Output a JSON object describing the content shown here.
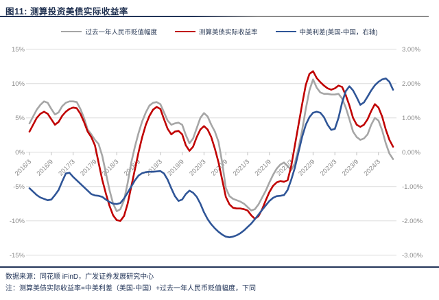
{
  "title": "图11: 测算投资美债实际收益率",
  "legend": [
    {
      "label": "过去一年人民币贬值幅度",
      "color": "#A6A6A6"
    },
    {
      "label": "测算美债实际收益率",
      "color": "#C00000"
    },
    {
      "label": "中美利差(美国-中国，右轴)",
      "color": "#2F5597"
    }
  ],
  "footer": {
    "source": "数据来源：同花顺 iFinD，广发证券发展研究中心",
    "note": "注：测算美债实际收益率=中美利差（美国-中国）+过去一年人民币贬值幅度，下同"
  },
  "chart_data": {
    "type": "line",
    "x_start": "2016/3",
    "x_frequency": "monthly",
    "x_tick_labels": [
      "2016/3",
      "2016/9",
      "2017/3",
      "2017/9",
      "2018/3",
      "2018/9",
      "2019/3",
      "2019/9",
      "2020/3",
      "2020/9",
      "2021/3",
      "2021/9",
      "2022/3",
      "2022/9",
      "2023/3",
      "2023/9",
      "2024/3"
    ],
    "left_axis": {
      "labels": [
        "15%",
        "10%",
        "5%",
        "0%",
        "-5%",
        "-10%",
        "-15%"
      ],
      "values": [
        15,
        10,
        5,
        0,
        -5,
        -10,
        -15
      ],
      "min": -15,
      "max": 15
    },
    "right_axis": {
      "labels": [
        "3.00%",
        "2.00%",
        "1.00%",
        "0.00%",
        "-1.00%",
        "-2.00%",
        "-3.00%"
      ],
      "values": [
        3,
        2,
        1,
        0,
        -1,
        -2,
        -3
      ],
      "min": -3,
      "max": 3
    },
    "grid": "horizontal",
    "legend_position": "top",
    "series": [
      {
        "name": "过去一年人民币贬值幅度",
        "axis": "left",
        "color": "#A6A6A6",
        "values": [
          4.2,
          5.2,
          6.2,
          6.9,
          7.4,
          7.2,
          6.3,
          5.5,
          5.8,
          6.7,
          7.2,
          7.4,
          7.4,
          7.3,
          6.3,
          5.0,
          3.3,
          2.6,
          1.8,
          1.2,
          -0.5,
          -3.0,
          -5.5,
          -7.5,
          -8.6,
          -8.3,
          -7.0,
          -4.5,
          -1.5,
          0.8,
          2.8,
          4.5,
          5.8,
          6.8,
          7.2,
          7.3,
          7.0,
          5.8,
          4.6,
          4.0,
          4.2,
          4.3,
          4.0,
          2.5,
          1.3,
          2.0,
          3.5,
          5.0,
          5.7,
          5.2,
          4.0,
          3.0,
          1.5,
          -1.5,
          -5.2,
          -6.4,
          -6.8,
          -7.0,
          -7.2,
          -7.5,
          -8.0,
          -8.5,
          -8.3,
          -7.6,
          -6.6,
          -5.6,
          -4.4,
          -3.3,
          -2.4,
          -1.8,
          -1.5,
          -2.0,
          -2.6,
          -1.6,
          0.6,
          3.2,
          6.3,
          9.0,
          10.6,
          9.4,
          8.7,
          8.5,
          8.5,
          8.4,
          8.4,
          8.5,
          7.8,
          6.5,
          4.8,
          3.0,
          2.2,
          1.8,
          2.0,
          2.6,
          4.0,
          5.0,
          4.6,
          3.2,
          1.3,
          -0.2,
          -1.0
        ]
      },
      {
        "name": "测算美债实际收益率",
        "axis": "left",
        "color": "#C00000",
        "values": [
          3.0,
          4.0,
          5.0,
          5.6,
          5.9,
          5.6,
          4.8,
          4.0,
          4.4,
          5.3,
          5.9,
          6.3,
          6.5,
          6.4,
          5.6,
          4.4,
          3.0,
          2.2,
          1.0,
          -1.5,
          -4.0,
          -6.0,
          -7.8,
          -9.2,
          -9.9,
          -10.0,
          -9.3,
          -7.5,
          -5.0,
          -2.5,
          0.0,
          2.2,
          4.0,
          5.3,
          6.2,
          6.6,
          6.3,
          4.8,
          3.4,
          2.6,
          3.0,
          3.1,
          2.6,
          1.0,
          0.2,
          0.8,
          2.2,
          3.3,
          3.8,
          3.3,
          2.2,
          0.5,
          -1.5,
          -4.0,
          -6.5,
          -7.6,
          -8.1,
          -8.2,
          -8.2,
          -8.3,
          -8.5,
          -9.2,
          -9.7,
          -9.3,
          -8.3,
          -7.0,
          -5.8,
          -4.9,
          -4.4,
          -4.2,
          -4.3,
          -4.1,
          -2.0,
          1.0,
          4.0,
          7.0,
          9.8,
          11.4,
          11.8,
          10.8,
          10.2,
          9.7,
          9.3,
          9.1,
          9.3,
          9.7,
          9.5,
          8.3,
          6.8,
          5.0,
          4.0,
          3.7,
          4.0,
          4.8,
          6.0,
          7.0,
          6.5,
          5.2,
          3.3,
          1.8,
          0.8
        ]
      },
      {
        "name": "中美利差(美国-中国，右轴)",
        "axis": "right",
        "color": "#2F5597",
        "values": [
          -1.05,
          -1.15,
          -1.25,
          -1.32,
          -1.36,
          -1.4,
          -1.38,
          -1.25,
          -1.1,
          -0.85,
          -0.62,
          -0.6,
          -0.72,
          -0.82,
          -0.92,
          -1.02,
          -1.12,
          -1.22,
          -1.26,
          -1.27,
          -1.3,
          -1.38,
          -1.45,
          -1.5,
          -1.51,
          -1.48,
          -1.35,
          -1.18,
          -1.0,
          -0.82,
          -0.68,
          -0.61,
          -0.58,
          -0.57,
          -0.57,
          -0.56,
          -0.55,
          -0.62,
          -0.8,
          -1.05,
          -1.28,
          -1.42,
          -1.38,
          -1.22,
          -1.12,
          -1.18,
          -1.3,
          -1.5,
          -1.75,
          -1.95,
          -2.1,
          -2.22,
          -2.32,
          -2.4,
          -2.46,
          -2.48,
          -2.46,
          -2.42,
          -2.36,
          -2.28,
          -2.18,
          -2.08,
          -1.95,
          -1.82,
          -1.68,
          -1.55,
          -1.42,
          -1.33,
          -1.28,
          -1.27,
          -1.25,
          -1.1,
          -0.8,
          -0.45,
          0.0,
          0.45,
          0.8,
          1.02,
          1.15,
          1.18,
          1.15,
          1.02,
          0.8,
          0.65,
          0.68,
          1.0,
          1.45,
          1.78,
          1.92,
          1.8,
          1.6,
          1.38,
          1.45,
          1.62,
          1.8,
          1.95,
          2.05,
          2.12,
          2.15,
          2.05,
          1.82
        ]
      }
    ]
  }
}
